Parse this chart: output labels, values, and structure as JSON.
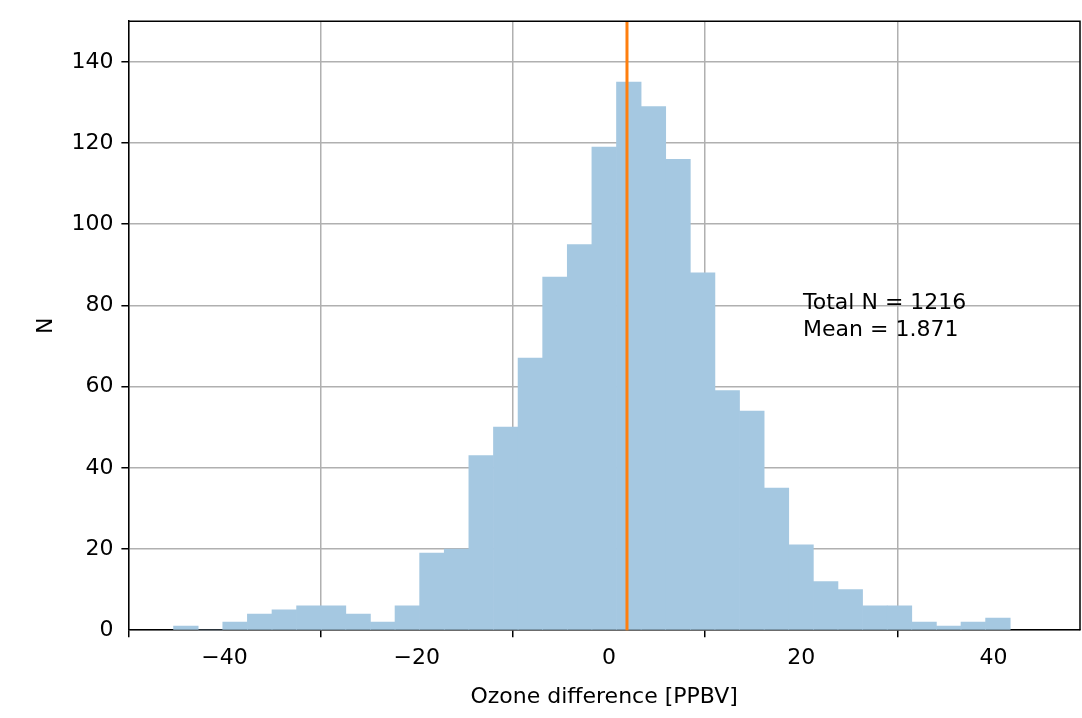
{
  "chart_data": {
    "type": "histogram",
    "xlabel": "Ozone difference [PPBV]",
    "ylabel": "N",
    "bins": [
      -45.3,
      -42.74,
      -40.18,
      -37.62,
      -35.06,
      -32.5,
      -29.94,
      -27.38,
      -24.82,
      -22.26,
      -19.7,
      -17.14,
      -14.58,
      -12.02,
      -9.46,
      -6.9,
      -4.34,
      -1.78,
      0.78,
      3.34,
      5.9,
      8.46,
      11.02,
      13.58,
      16.14,
      18.7,
      21.26,
      23.82,
      26.38,
      28.94,
      31.5,
      34.06,
      36.62,
      39.18,
      41.74
    ],
    "values": [
      1,
      0,
      2,
      4,
      5,
      6,
      6,
      4,
      2,
      6,
      19,
      20,
      43,
      50,
      67,
      87,
      95,
      119,
      135,
      129,
      116,
      88,
      59,
      54,
      35,
      21,
      12,
      10,
      6,
      6,
      2,
      1,
      2,
      3
    ],
    "color": "#a5c8e1",
    "xlim": [
      -50,
      49
    ],
    "ylim": [
      0,
      150
    ],
    "xticks": [
      {
        "value": -40,
        "label": "−40"
      },
      {
        "value": -20,
        "label": "−20"
      },
      0,
      20,
      40
    ],
    "yticks": [
      0,
      20,
      40,
      60,
      80,
      100,
      120,
      140
    ],
    "grid": true,
    "ref_lines": [
      {
        "axis": "x",
        "value": 1.871,
        "color": "#ff7f0e"
      }
    ],
    "annotations": [
      "Total N = 1216",
      "Mean = 1.871"
    ]
  }
}
